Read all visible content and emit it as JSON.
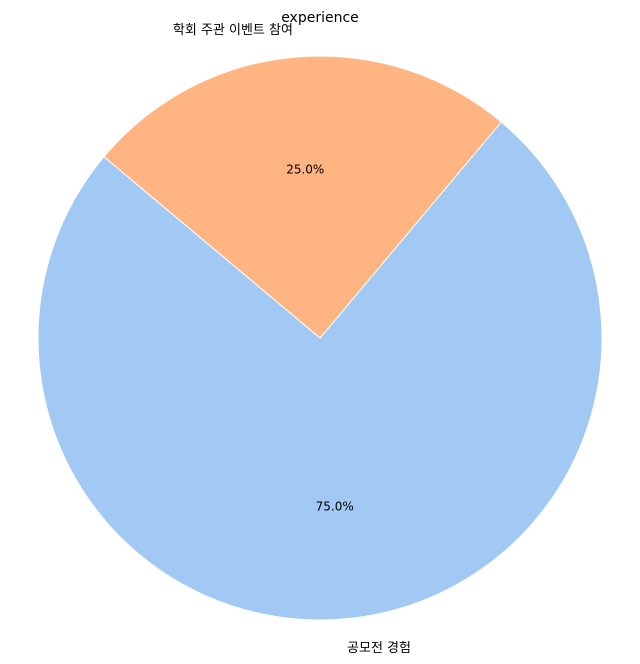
{
  "chart_data": {
    "type": "pie",
    "title": "experience",
    "slices": [
      {
        "label": "공모전 경험",
        "value": 75.0,
        "pct_label": "75.0%",
        "color": "#a1c9f4"
      },
      {
        "label": "학회 주관 이벤트 참여",
        "value": 25.0,
        "pct_label": "25.0%",
        "color": "#ffb482"
      }
    ],
    "start_angle_deg": 140,
    "direction": "counterclockwise",
    "edge_color": "#ffffff"
  }
}
